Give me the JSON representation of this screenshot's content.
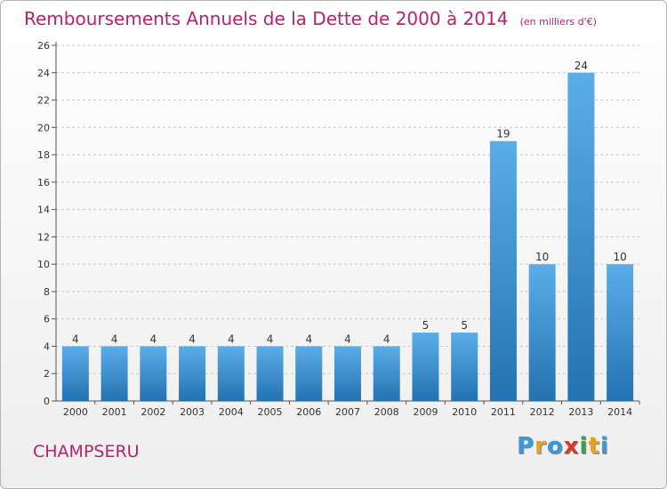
{
  "header": {
    "title": "Remboursements Annuels de la Dette de 2000 à 2014",
    "unit": "(en milliers d'€)"
  },
  "footer": {
    "commune": "CHAMPSERU"
  },
  "logo": {
    "text": "Proxiti",
    "letters": [
      {
        "ch": "P",
        "color": "#3a9ad9"
      },
      {
        "ch": "r",
        "color": "#e8a020"
      },
      {
        "ch": "o",
        "color": "#3a9ad9"
      },
      {
        "ch": "x",
        "color": "#d83a2a"
      },
      {
        "ch": "i",
        "color": "#3aa04a"
      },
      {
        "ch": "t",
        "color": "#e8a020"
      },
      {
        "ch": "i",
        "color": "#3a9ad9"
      }
    ]
  },
  "colors": {
    "accent": "#b5226e",
    "bar_top": "#5aaee8",
    "bar_bottom": "#2472b0",
    "grid": "#c8c8c8"
  },
  "chart_data": {
    "type": "bar",
    "title": "Remboursements Annuels de la Dette de 2000 à 2014",
    "subtitle": "(en milliers d'€)",
    "categories": [
      "2000",
      "2001",
      "2002",
      "2003",
      "2004",
      "2005",
      "2006",
      "2007",
      "2008",
      "2009",
      "2010",
      "2011",
      "2012",
      "2013",
      "2014"
    ],
    "values": [
      4,
      4,
      4,
      4,
      4,
      4,
      4,
      4,
      4,
      5,
      5,
      19,
      10,
      24,
      10
    ],
    "ylim": [
      0,
      26
    ],
    "yticks": [
      0,
      2,
      4,
      6,
      8,
      10,
      12,
      14,
      16,
      18,
      20,
      22,
      24,
      26
    ],
    "grid": true,
    "legend": "none"
  }
}
